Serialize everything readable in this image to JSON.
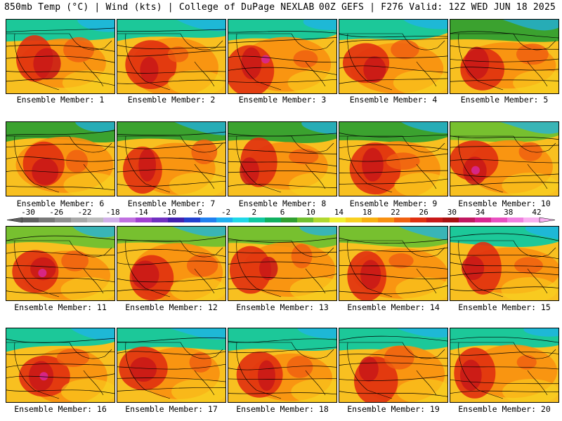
{
  "header": {
    "left": "850mb Temp (°C) | Wind (kts) | College of DuPage NEXLAB",
    "right": "00Z GEFS | F276 Valid: 12Z WED JUN 18 2025"
  },
  "colorbar": {
    "labels": [
      "-30",
      "-26",
      "-22",
      "-18",
      "-14",
      "-10",
      "-6",
      "-2",
      "2",
      "6",
      "10",
      "14",
      "18",
      "22",
      "26",
      "30",
      "34",
      "38",
      "42"
    ],
    "colors": [
      "#606060",
      "#787878",
      "#909090",
      "#a8a8a8",
      "#bcbcbc",
      "#d0b0e8",
      "#c070e0",
      "#a040d0",
      "#7030c0",
      "#4020b0",
      "#2040d0",
      "#2080f0",
      "#20b0f0",
      "#20d8e8",
      "#10c8a0",
      "#10b060",
      "#30a030",
      "#70c030",
      "#b0d830",
      "#f0f030",
      "#f8d020",
      "#f8b010",
      "#f89010",
      "#f06010",
      "#e03010",
      "#c81818",
      "#a81010",
      "#c01860",
      "#d82890",
      "#e850c0",
      "#f080e0",
      "#f8b0f0"
    ]
  },
  "members": [
    {
      "label": "Ensemble Member: 1",
      "number": 1
    },
    {
      "label": "Ensemble Member: 2",
      "number": 2
    },
    {
      "label": "Ensemble Member: 3",
      "number": 3
    },
    {
      "label": "Ensemble Member: 4",
      "number": 4
    },
    {
      "label": "Ensemble Member: 5",
      "number": 5
    },
    {
      "label": "Ensemble Member: 6",
      "number": 6
    },
    {
      "label": "Ensemble Member: 7",
      "number": 7
    },
    {
      "label": "Ensemble Member: 8",
      "number": 8
    },
    {
      "label": "Ensemble Member: 9",
      "number": 9
    },
    {
      "label": "Ensemble Member: 10",
      "number": 10
    },
    {
      "label": "Ensemble Member: 11",
      "number": 11
    },
    {
      "label": "Ensemble Member: 12",
      "number": 12
    },
    {
      "label": "Ensemble Member: 13",
      "number": 13
    },
    {
      "label": "Ensemble Member: 14",
      "number": 14
    },
    {
      "label": "Ensemble Member: 15",
      "number": 15
    },
    {
      "label": "Ensemble Member: 16",
      "number": 16
    },
    {
      "label": "Ensemble Member: 17",
      "number": 17
    },
    {
      "label": "Ensemble Member: 18",
      "number": 18
    },
    {
      "label": "Ensemble Member: 19",
      "number": 19
    },
    {
      "label": "Ensemble Member: 20",
      "number": 20
    }
  ]
}
